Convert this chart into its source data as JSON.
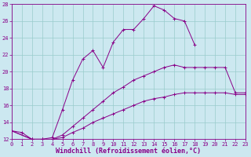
{
  "xlabel": "Windchill (Refroidissement éolien,°C)",
  "background_color": "#cce8f0",
  "line_color": "#880088",
  "grid_color": "#99cccc",
  "xlim": [
    0,
    23
  ],
  "ylim": [
    12,
    28
  ],
  "xticks": [
    0,
    1,
    2,
    3,
    4,
    5,
    6,
    7,
    8,
    9,
    10,
    11,
    12,
    13,
    14,
    15,
    16,
    17,
    18,
    19,
    20,
    21,
    22,
    23
  ],
  "yticks": [
    12,
    14,
    16,
    18,
    20,
    22,
    24,
    26,
    28
  ],
  "lines": [
    {
      "x": [
        0,
        1,
        2,
        3,
        4,
        5,
        6,
        7,
        8,
        9,
        10,
        11,
        12,
        13,
        14,
        15,
        16,
        17,
        18
      ],
      "y": [
        13,
        12.8,
        12,
        12,
        12.2,
        15.5,
        19,
        21.5,
        22.5,
        20.5,
        23.5,
        25,
        25,
        26.3,
        27.8,
        27.3,
        26.3,
        26,
        23.2
      ]
    },
    {
      "x": [
        0,
        2,
        3,
        4,
        5,
        6,
        7,
        8,
        9,
        10,
        11,
        12,
        13,
        14,
        15,
        16,
        17,
        18,
        19,
        20,
        21,
        22,
        23
      ],
      "y": [
        13,
        12,
        12,
        12,
        12.5,
        13.5,
        14.5,
        15.5,
        16.5,
        17.5,
        18.2,
        19,
        19.5,
        20,
        20.5,
        20.8,
        20.5,
        20.5,
        20.5,
        20.5,
        20.5,
        17.5,
        17.5
      ]
    },
    {
      "x": [
        0,
        2,
        3,
        4,
        5,
        6,
        7,
        8,
        9,
        10,
        11,
        12,
        13,
        14,
        15,
        16,
        17,
        18,
        19,
        20,
        21,
        22,
        23
      ],
      "y": [
        13,
        12,
        12,
        12,
        12.2,
        12.8,
        13.3,
        14,
        14.5,
        15,
        15.5,
        16,
        16.5,
        16.8,
        17,
        17.3,
        17.5,
        17.5,
        17.5,
        17.5,
        17.5,
        17.3,
        17.3
      ]
    }
  ],
  "tick_fontsize": 5.0,
  "xlabel_fontsize": 6.0,
  "xlabel_fontweight": "bold"
}
